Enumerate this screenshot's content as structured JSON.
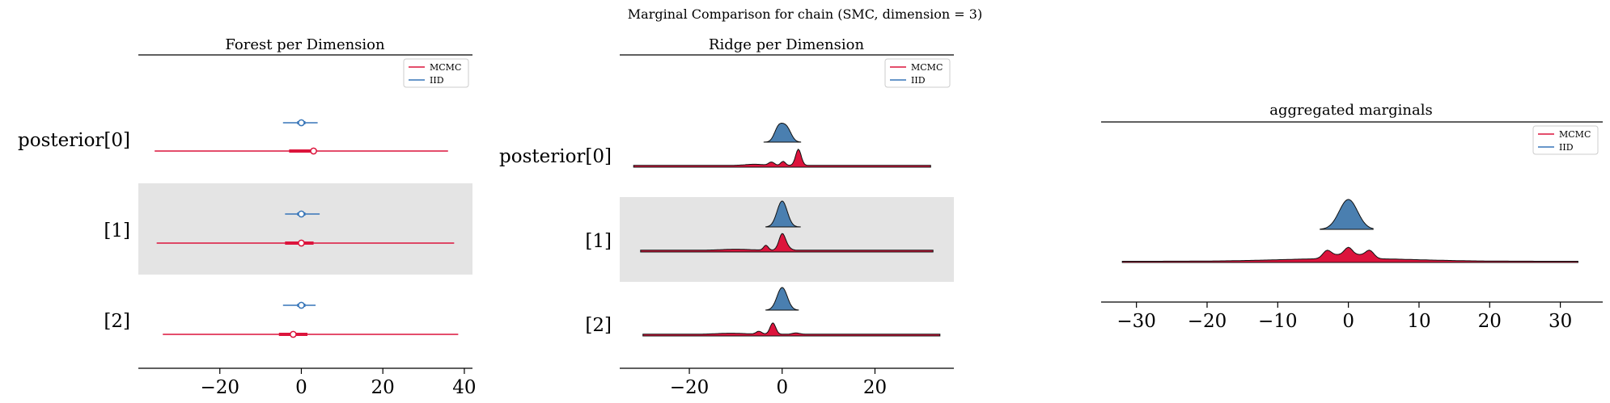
{
  "figure": {
    "suptitle": "Marginal Comparison for chain (SMC, dimension = 3)"
  },
  "colors": {
    "mcmc": "#dc143c",
    "iid": "#3775b8",
    "iid_fill": "#4a7fb0",
    "band": "#e4e4e4"
  },
  "chart_data": [
    {
      "type": "forest",
      "title": "Forest per Dimension",
      "xlim": [
        -40,
        42
      ],
      "xticks": [
        -20,
        0,
        20,
        40
      ],
      "xtick_labels": [
        "−20",
        "0",
        "20",
        "40"
      ],
      "rows": [
        "posterior[0]",
        "[1]",
        "[2]"
      ],
      "legend": {
        "placement": "upper right",
        "entries": [
          "MCMC",
          "IID"
        ]
      },
      "series": [
        {
          "name": "MCMC",
          "intervals": [
            {
              "hdi": [
                -36,
                36
              ],
              "iqr": [
                -3,
                3
              ],
              "mean": 3
            },
            {
              "hdi": [
                -35.5,
                37.5
              ],
              "iqr": [
                -4,
                3
              ],
              "mean": 0
            },
            {
              "hdi": [
                -34,
                38.5
              ],
              "iqr": [
                -5.5,
                1.5
              ],
              "mean": -2
            }
          ]
        },
        {
          "name": "IID",
          "intervals": [
            {
              "hdi": [
                -4.5,
                4
              ],
              "iqr": [
                -1,
                1
              ],
              "mean": 0
            },
            {
              "hdi": [
                -4,
                4.5
              ],
              "iqr": [
                -1,
                1
              ],
              "mean": 0
            },
            {
              "hdi": [
                -4.5,
                3.5
              ],
              "iqr": [
                -1,
                1
              ],
              "mean": 0
            }
          ]
        }
      ]
    },
    {
      "type": "ridge",
      "title": "Ridge per Dimension",
      "xlim": [
        -35,
        37
      ],
      "xticks": [
        -20,
        0,
        20
      ],
      "xtick_labels": [
        "−20",
        "0",
        "20"
      ],
      "rows": [
        "posterior[0]",
        "[1]",
        "[2]"
      ],
      "legend": {
        "placement": "upper right",
        "entries": [
          "MCMC",
          "IID"
        ]
      },
      "series": [
        {
          "name": "MCMC",
          "ranges": [
            [
              -32,
              32
            ],
            [
              -30.5,
              32.5
            ],
            [
              -30,
              34
            ]
          ]
        },
        {
          "name": "IID",
          "ranges": [
            [
              -4,
              4
            ],
            [
              -3.5,
              4
            ],
            [
              -3.5,
              3.5
            ]
          ]
        }
      ]
    },
    {
      "type": "density",
      "title": "aggregated marginals",
      "xlim": [
        -35,
        36
      ],
      "xticks": [
        -30,
        -20,
        -10,
        0,
        10,
        20,
        30
      ],
      "xtick_labels": [
        "−30",
        "−20",
        "−10",
        "0",
        "10",
        "20",
        "30"
      ],
      "legend": {
        "placement": "upper right",
        "entries": [
          "MCMC",
          "IID"
        ]
      },
      "series": [
        {
          "name": "MCMC",
          "range": [
            -32,
            32.5
          ]
        },
        {
          "name": "IID",
          "range": [
            -4,
            3.5
          ]
        }
      ]
    }
  ]
}
